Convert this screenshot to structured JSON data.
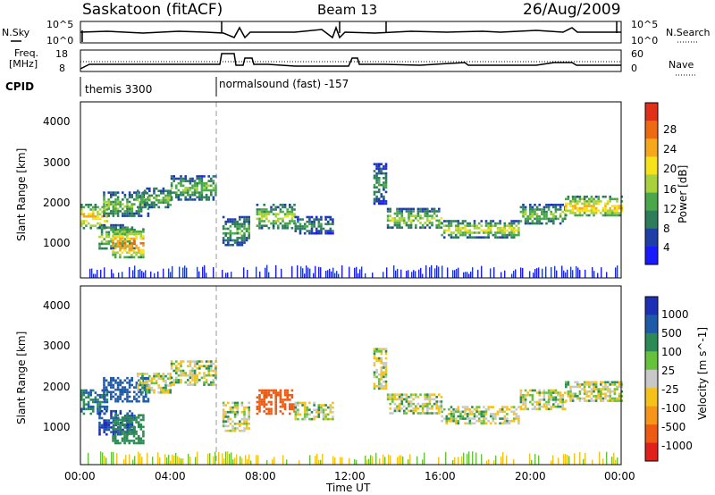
{
  "header": {
    "title": "Saskatoon (fitACF)",
    "beam": "Beam 13",
    "date": "26/Aug/2009"
  },
  "noise_panel": {
    "left_label": "N.Sky",
    "right_label": "N.Search",
    "left_ticks": [
      "10^5",
      "10^0"
    ],
    "right_ticks": [
      "10^5",
      "10^0"
    ]
  },
  "freq_panel": {
    "left_label": "Freq.",
    "left_unit": "[MHz]",
    "right_label": "Nave",
    "left_ticks": [
      "18",
      "8"
    ],
    "right_ticks": [
      "60",
      "0"
    ]
  },
  "cpid": {
    "label": "CPID",
    "modes": [
      {
        "text": "themis 3300",
        "start_hour": 0
      },
      {
        "text": "normalsound (fast) -157",
        "start_hour": 6
      }
    ]
  },
  "time_axis": {
    "label": "Time UT",
    "ticks": [
      "00:00",
      "04:00",
      "08:00",
      "12:00",
      "16:00",
      "20:00",
      "00:00"
    ]
  },
  "power_panel": {
    "ylabel": "Slant Range [km]",
    "yticks": [
      "1000",
      "2000",
      "3000",
      "4000"
    ],
    "colorbar_label": "Power [dB]",
    "colorbar_ticks": [
      "4",
      "8",
      "12",
      "16",
      "20",
      "24",
      "28"
    ],
    "colors": [
      "#1a1aff",
      "#1f3fa8",
      "#2e7d5a",
      "#4aa84a",
      "#a8d13b",
      "#f5e21a",
      "#f5a91a",
      "#ee6a12",
      "#e0301a"
    ]
  },
  "velocity_panel": {
    "ylabel": "Slant Range [km]",
    "yticks": [
      "1000",
      "2000",
      "3000",
      "4000"
    ],
    "colorbar_label": "Velocity [m s^-1]",
    "colorbar_ticks": [
      "1000",
      "500",
      "100",
      "25",
      "-25",
      "-100",
      "-500",
      "-1000"
    ],
    "colors": [
      "#1c2fb5",
      "#1f5aa8",
      "#2e8a55",
      "#66c23a",
      "#c8c8c8",
      "#f5c21a",
      "#f5951a",
      "#ee5a12",
      "#e0201a"
    ]
  },
  "chart_data": {
    "type": "heatmap",
    "x_range_hours": [
      0,
      24
    ],
    "y_range_km": [
      180,
      4500
    ],
    "regions": [
      {
        "hours": [
          0.0,
          1.2
        ],
        "km": [
          1400,
          2000
        ],
        "power_db": 22,
        "velocity_ms": 300
      },
      {
        "hours": [
          0.8,
          2.4
        ],
        "km": [
          900,
          1500
        ],
        "power_db": 16,
        "velocity_ms": 700
      },
      {
        "hours": [
          1.4,
          2.8
        ],
        "km": [
          700,
          1400
        ],
        "power_db": 26,
        "velocity_ms": 200
      },
      {
        "hours": [
          1.0,
          3.0
        ],
        "km": [
          1700,
          2300
        ],
        "power_db": 14,
        "velocity_ms": 400
      },
      {
        "hours": [
          2.5,
          4.0
        ],
        "km": [
          1900,
          2400
        ],
        "power_db": 14,
        "velocity_ms": 0
      },
      {
        "hours": [
          4.0,
          6.0
        ],
        "km": [
          2100,
          2700
        ],
        "power_db": 14,
        "velocity_ms": 0
      },
      {
        "hours": [
          6.3,
          7.5
        ],
        "km": [
          1000,
          1700
        ],
        "power_db": 12,
        "velocity_ms": 0
      },
      {
        "hours": [
          7.8,
          9.5
        ],
        "km": [
          1400,
          2000
        ],
        "power_db": 16,
        "velocity_ms": -600
      },
      {
        "hours": [
          9.5,
          11.2
        ],
        "km": [
          1300,
          1700
        ],
        "power_db": 10,
        "velocity_ms": 0
      },
      {
        "hours": [
          13.0,
          13.6
        ],
        "km": [
          2000,
          3000
        ],
        "power_db": 10,
        "velocity_ms": 0
      },
      {
        "hours": [
          13.6,
          16.0
        ],
        "km": [
          1400,
          1900
        ],
        "power_db": 16,
        "velocity_ms": 0
      },
      {
        "hours": [
          16.0,
          19.5
        ],
        "km": [
          1200,
          1600
        ],
        "power_db": 18,
        "velocity_ms": 0
      },
      {
        "hours": [
          19.5,
          21.5
        ],
        "km": [
          1500,
          2000
        ],
        "power_db": 14,
        "velocity_ms": 0
      },
      {
        "hours": [
          21.5,
          24.0
        ],
        "km": [
          1700,
          2200
        ],
        "power_db": 22,
        "velocity_ms": 0
      }
    ],
    "ground_scatter_km": [
      180,
      500
    ]
  }
}
